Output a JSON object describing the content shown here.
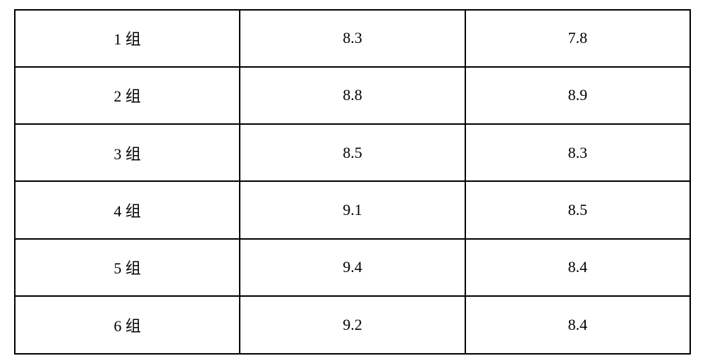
{
  "table": {
    "type": "table",
    "columns": 3,
    "rows": [
      [
        "1 组",
        "8.3",
        "7.8"
      ],
      [
        "2 组",
        "8.8",
        "8.9"
      ],
      [
        "3 组",
        "8.5",
        "8.3"
      ],
      [
        "4 组",
        "9.1",
        "8.5"
      ],
      [
        "5 组",
        "9.4",
        "8.4"
      ],
      [
        "6 组",
        "9.2",
        "8.4"
      ]
    ],
    "column_widths": [
      "33.33%",
      "33.33%",
      "33.34%"
    ],
    "border_color": "#000000",
    "border_width": 2,
    "background_color": "#ffffff",
    "text_color": "#000000",
    "font_size": 22,
    "font_family": "SimSun",
    "text_align": "center"
  }
}
